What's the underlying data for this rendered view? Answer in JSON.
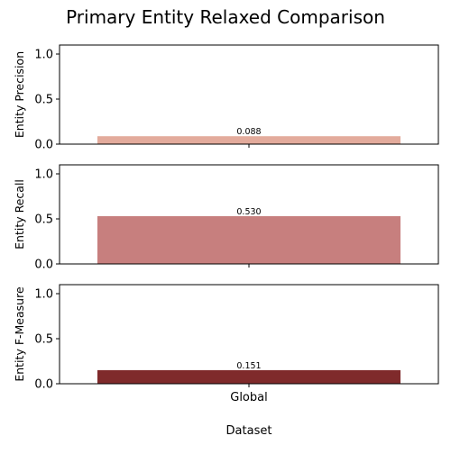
{
  "chart_data": {
    "type": "bar",
    "title": "Primary Entity Relaxed Comparison",
    "xlabel": "Dataset",
    "categories": [
      "Global"
    ],
    "shared_x": true,
    "legend": "none",
    "grid": false,
    "subplots": [
      {
        "ylabel": "Entity Precision",
        "ylim": [
          0,
          1.1
        ],
        "yticks": [
          "0.0",
          "0.5",
          "1.0"
        ],
        "values": [
          0.088
        ],
        "value_labels": [
          "0.088"
        ],
        "color": "#E3AB9C"
      },
      {
        "ylabel": "Entity Recall",
        "ylim": [
          0,
          1.1
        ],
        "yticks": [
          "0.0",
          "0.5",
          "1.0"
        ],
        "values": [
          0.53
        ],
        "value_labels": [
          "0.530"
        ],
        "color": "#C77F7E"
      },
      {
        "ylabel": "Entity F-Measure",
        "ylim": [
          0,
          1.1
        ],
        "yticks": [
          "0.0",
          "0.5",
          "1.0"
        ],
        "values": [
          0.151
        ],
        "value_labels": [
          "0.151"
        ],
        "color": "#7F2A2B"
      }
    ]
  }
}
